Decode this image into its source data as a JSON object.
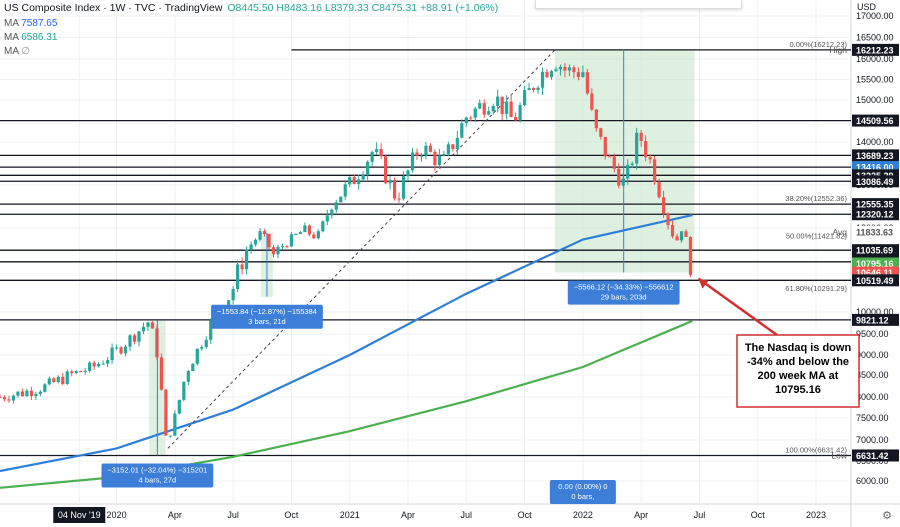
{
  "header": {
    "symbol": "US Composite Index · 1W · TVC · TradingView",
    "ohlc": "O8445.50  H8483.16  L8379.33  C8475.31  +88.91 (+1.06%)",
    "ma_lines": [
      {
        "label": "MA",
        "value": "7587.65"
      },
      {
        "label": "MA",
        "value": "6586.31"
      },
      {
        "label": "MA",
        "value": "∅"
      }
    ]
  },
  "currency": "USD",
  "colors": {
    "up": "#26a69a",
    "down": "#ef5350",
    "ma_blue": "#2e7fd8",
    "ma_green": "#4caf50",
    "box_green": "#c8e6c9",
    "measure_blue": "#3d7ed8",
    "annotation_red": "#d32f2f"
  },
  "chart_data": {
    "type": "candlestick",
    "title": "US Composite Index",
    "timeframe": "1W",
    "ylim": [
      5800,
      17000
    ],
    "y_ticks": [
      6000,
      6500,
      7000,
      7500,
      8000,
      8500,
      9000,
      9500,
      10000,
      11000,
      12000,
      13000,
      14000,
      15000,
      15500,
      16000,
      16500,
      17000
    ],
    "x_ticks": [
      {
        "label": "04 Nov '19",
        "t": 2019.84
      },
      {
        "label": "2020",
        "t": 2020.0
      },
      {
        "label": "Apr",
        "t": 2020.25
      },
      {
        "label": "Jul",
        "t": 2020.5
      },
      {
        "label": "Oct",
        "t": 2020.75
      },
      {
        "label": "2021",
        "t": 2021.0
      },
      {
        "label": "Apr",
        "t": 2021.25
      },
      {
        "label": "Jul",
        "t": 2021.5
      },
      {
        "label": "Oct",
        "t": 2021.75
      },
      {
        "label": "2022",
        "t": 2022.0
      },
      {
        "label": "Apr",
        "t": 2022.25
      },
      {
        "label": "Jul",
        "t": 2022.5
      },
      {
        "label": "Oct",
        "t": 2022.75
      },
      {
        "label": "2023",
        "t": 2023.0
      }
    ],
    "xlim": [
      2019.5,
      2023.15
    ],
    "price_path": [
      [
        2019.5,
        8000
      ],
      [
        2019.6,
        8100
      ],
      [
        2019.7,
        8250
      ],
      [
        2019.8,
        8500
      ],
      [
        2019.9,
        8700
      ],
      [
        2020.0,
        9100
      ],
      [
        2020.1,
        9600
      ],
      [
        2020.14,
        9800
      ],
      [
        2020.18,
        8900
      ],
      [
        2020.21,
        7000
      ],
      [
        2020.24,
        7300
      ],
      [
        2020.3,
        8600
      ],
      [
        2020.4,
        9700
      ],
      [
        2020.5,
        10400
      ],
      [
        2020.62,
        11800
      ],
      [
        2020.67,
        10900
      ],
      [
        2020.72,
        11300
      ],
      [
        2020.8,
        11900
      ],
      [
        2020.86,
        11600
      ],
      [
        2020.92,
        12600
      ],
      [
        2021.0,
        13000
      ],
      [
        2021.1,
        13800
      ],
      [
        2021.14,
        13400
      ],
      [
        2021.2,
        12700
      ],
      [
        2021.3,
        13900
      ],
      [
        2021.4,
        13500
      ],
      [
        2021.5,
        14600
      ],
      [
        2021.62,
        15100
      ],
      [
        2021.7,
        14500
      ],
      [
        2021.8,
        15500
      ],
      [
        2021.88,
        16000
      ],
      [
        2021.93,
        15700
      ],
      [
        2022.0,
        15700
      ],
      [
        2022.05,
        14300
      ],
      [
        2022.12,
        13500
      ],
      [
        2022.18,
        13000
      ],
      [
        2022.24,
        14200
      ],
      [
        2022.3,
        13400
      ],
      [
        2022.36,
        12300
      ],
      [
        2022.4,
        11400
      ],
      [
        2022.43,
        12200
      ],
      [
        2022.45,
        11000
      ],
      [
        2022.47,
        10646
      ]
    ],
    "series": [
      {
        "name": "MA",
        "points": [
          [
            2019.5,
            6250
          ],
          [
            2020.0,
            6800
          ],
          [
            2020.5,
            7700
          ],
          [
            2021.0,
            9000
          ],
          [
            2021.5,
            10300
          ],
          [
            2022.0,
            11500
          ],
          [
            2022.47,
            12300
          ]
        ]
      },
      {
        "name": "MA",
        "points": [
          [
            2019.5,
            5850
          ],
          [
            2020.0,
            6100
          ],
          [
            2020.5,
            6600
          ],
          [
            2021.0,
            7200
          ],
          [
            2021.5,
            7900
          ],
          [
            2022.0,
            8700
          ],
          [
            2022.47,
            9800
          ]
        ]
      }
    ],
    "horizontal_levels": [
      16212.23,
      14509.56,
      13689.23,
      13416.0,
      13225.29,
      13086.49,
      12555.35,
      12320.12,
      11035.69,
      10822.57,
      10519.49,
      9821.12,
      6631.42
    ],
    "right_axis_labels": [
      {
        "text": "High",
        "value": 16212.23
      },
      {
        "text": "16212.23",
        "value": 16212.23
      },
      {
        "text": "14509.56",
        "value": 14509.56
      },
      {
        "text": "13689.23",
        "value": 13689.23
      },
      {
        "text": "13416.00",
        "value": 13416.0
      },
      {
        "text": "13225.29",
        "value": 13225.29
      },
      {
        "text": "13086.49",
        "value": 13086.49
      },
      {
        "text": "12555.35",
        "value": 12555.35
      },
      {
        "text": "12320.12",
        "value": 12320.12
      },
      {
        "text": "Avg",
        "value": 11833.63
      },
      {
        "text": "11833.63",
        "value": 11833.63
      },
      {
        "text": "11035.69",
        "value": 11035.69
      },
      {
        "text": "10822.57",
        "value": 10822.57
      },
      {
        "text": "10795.16",
        "value": 10795.16
      },
      {
        "text": "10646.11",
        "value": 10646.11
      },
      {
        "text": "10519.49",
        "value": 10519.49
      },
      {
        "text": "9821.12",
        "value": 9821.12
      },
      {
        "text": "6631.42",
        "value": 6631.42
      },
      {
        "text": "Low",
        "value": 6631.42
      },
      {
        "text": "6631.42",
        "value": 6631.42
      }
    ],
    "fib_labels": [
      {
        "text": "0.00%(16212.23)",
        "value": 16212.23
      },
      {
        "text": "38.20%(12552.36)",
        "value": 12552.36
      },
      {
        "text": "50.00%(11421.82)",
        "value": 11421.82
      },
      {
        "text": "61.80%(10291.29)",
        "value": 10291.29
      },
      {
        "text": "100.00%(6631.42)",
        "value": 6631.42
      }
    ],
    "measure_boxes": [
      {
        "from": [
          2020.14,
          9800
        ],
        "to": [
          2020.21,
          6631
        ],
        "text1": "−3152.01 (−32.04%) −315201",
        "text2": "4 bars, 27d"
      },
      {
        "from": [
          2020.62,
          11800
        ],
        "to": [
          2020.67,
          10250
        ],
        "text1": "−1553.84 (−12.87%) −155384",
        "text2": "3 bars, 21d"
      },
      {
        "from": [
          2021.88,
          16212
        ],
        "to": [
          2022.47,
          10646
        ],
        "text1": "−5566.12 (−34.33%) −556612",
        "text2": "29 bars, 203d"
      },
      {
        "from": [
          2022.0,
          5800
        ],
        "to": [
          2022.0,
          5800
        ],
        "text1": "0.00 (0.00%) 0",
        "text2": "0 bars,"
      }
    ],
    "annotation": {
      "text": "The Nasdaq is down -34% and below the 200 week MA at 10795.16",
      "target": [
        2022.47,
        10646
      ]
    }
  }
}
